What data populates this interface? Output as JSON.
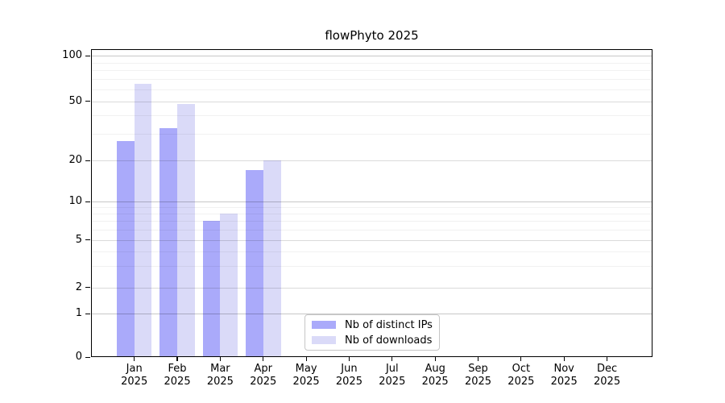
{
  "title": "flowPhyto 2025",
  "y_axis": {
    "tick_values": [
      100,
      50,
      20,
      10,
      5,
      2,
      1,
      0
    ]
  },
  "x_axis": {
    "months": [
      "Jan",
      "Feb",
      "Mar",
      "Apr",
      "May",
      "Jun",
      "Jul",
      "Aug",
      "Sep",
      "Oct",
      "Nov",
      "Dec"
    ],
    "year": "2025"
  },
  "legend": {
    "items": [
      {
        "label": "Nb of distinct IPs",
        "color": "#aaaafa"
      },
      {
        "label": "Nb of downloads",
        "color": "#dadaf8"
      }
    ]
  },
  "colors": {
    "background": "#ffffff",
    "axis": "#000000",
    "bar_distinct_ips": "#aaaafa",
    "bar_downloads": "#dadaf8"
  },
  "chart_data": {
    "type": "bar",
    "title": "flowPhyto 2025",
    "categories": [
      "Jan 2025",
      "Feb 2025",
      "Mar 2025",
      "Apr 2025",
      "May 2025",
      "Jun 2025",
      "Jul 2025",
      "Aug 2025",
      "Sep 2025",
      "Oct 2025",
      "Nov 2025",
      "Dec 2025"
    ],
    "series": [
      {
        "name": "Nb of distinct IPs",
        "color": "#aaaafa",
        "values": [
          27,
          33,
          7,
          17,
          0,
          0,
          0,
          0,
          0,
          0,
          0,
          0
        ]
      },
      {
        "name": "Nb of downloads",
        "color": "#dadaf8",
        "values": [
          65,
          48,
          8,
          20,
          0,
          0,
          0,
          0,
          0,
          0,
          0,
          0
        ]
      }
    ],
    "yscale": "log",
    "ylim": [
      0,
      100
    ],
    "y_ticks_labeled": [
      0,
      1,
      2,
      5,
      10,
      20,
      50,
      100
    ],
    "y_minor_gridlines": [
      3,
      4,
      6,
      7,
      8,
      9,
      30,
      40,
      60,
      70,
      80,
      90
    ],
    "grid": "horizontal-major-and-minor",
    "grid_drawn_over_bars": true,
    "legend_position": "inside-bottom-center"
  }
}
